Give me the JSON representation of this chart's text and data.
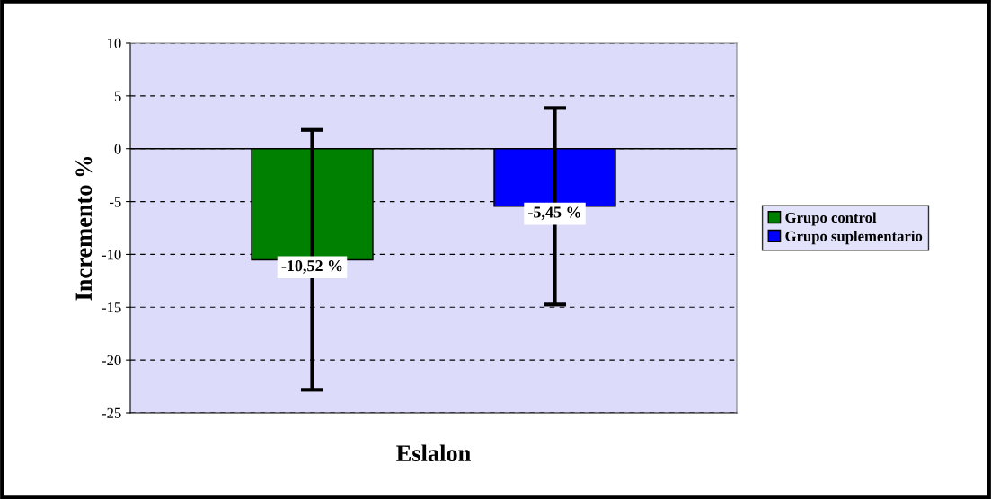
{
  "chart_data": {
    "type": "bar",
    "xlabel": "Eslalon",
    "ylabel": "Incremento %",
    "categories": [
      null
    ],
    "series": [
      {
        "name": "Grupo control",
        "color": "#008000",
        "values": [
          -10.52
        ],
        "errors": [
          12.3
        ],
        "value_labels": [
          "-10,52 %"
        ]
      },
      {
        "name": "Grupo suplementario",
        "color": "#0000ff",
        "values": [
          -5.45
        ],
        "errors": [
          9.3
        ],
        "value_labels": [
          "-5,45 %"
        ]
      }
    ],
    "ylim": [
      -25,
      10
    ],
    "yticks": [
      -25,
      -20,
      -15,
      -10,
      -5,
      0,
      5,
      10
    ],
    "grid": "y",
    "line_style": "dashed",
    "legend": "right"
  }
}
